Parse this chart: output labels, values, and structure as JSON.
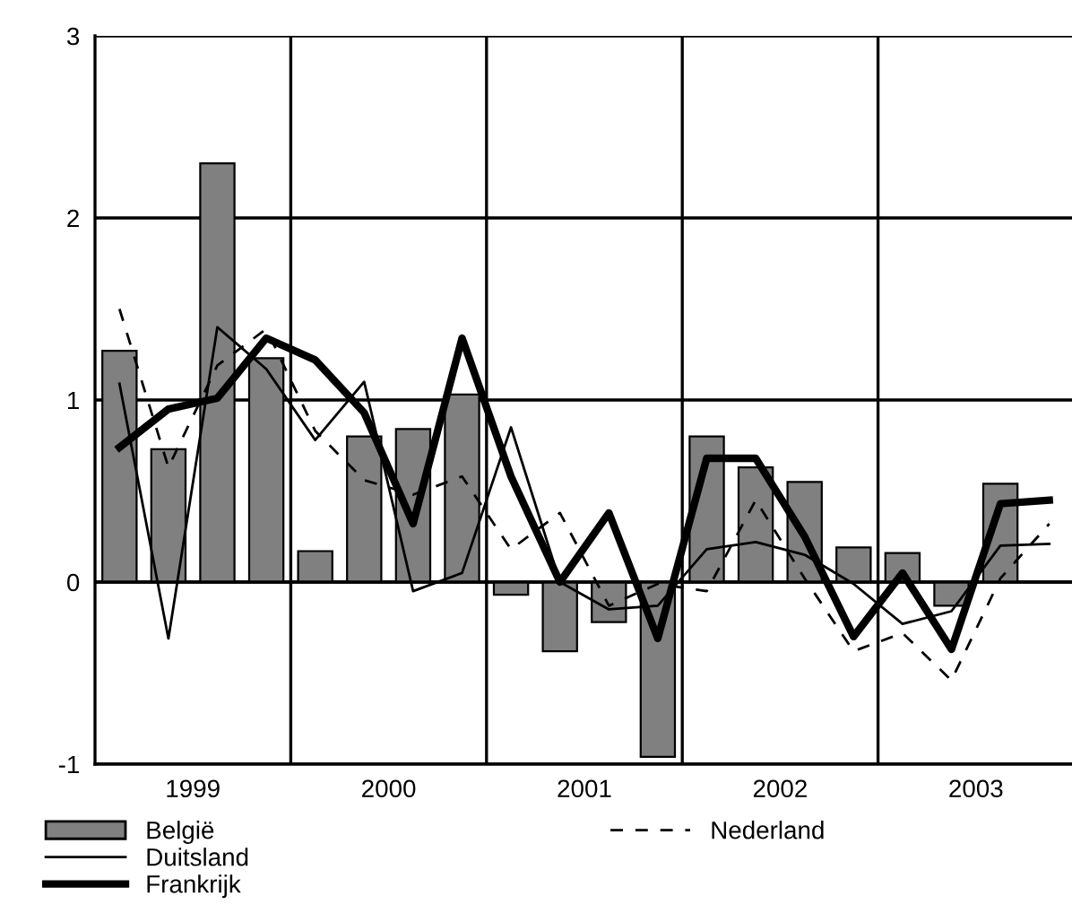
{
  "chart_data": {
    "type": "bar",
    "x": [
      1999.125,
      1999.375,
      1999.625,
      1999.875,
      2000.125,
      2000.375,
      2000.625,
      2000.875,
      2001.125,
      2001.375,
      2001.625,
      2001.875,
      2002.125,
      2002.375,
      2002.625,
      2002.875,
      2003.125,
      2003.375,
      2003.625,
      2003.875
    ],
    "series": [
      {
        "name": "België",
        "color": "#808080",
        "values": [
          1.27,
          0.73,
          2.3,
          1.23,
          0.17,
          0.8,
          0.84,
          1.03,
          -0.07,
          -0.38,
          -0.22,
          -0.96,
          0.8,
          0.63,
          0.55,
          0.19,
          0.16,
          -0.13,
          0.54,
          null
        ]
      },
      {
        "name": "Duitsland",
        "type": "line",
        "color": "#000000",
        "line_style": "solid",
        "values": [
          1.09,
          -0.31,
          1.4,
          1.17,
          0.78,
          1.1,
          -0.05,
          0.05,
          0.85,
          0.0,
          -0.15,
          -0.13,
          0.18,
          0.22,
          0.15,
          -0.01,
          -0.23,
          -0.16,
          0.2,
          0.21
        ]
      },
      {
        "name": "Frankrijk",
        "type": "line",
        "color": "#000000",
        "line_style": "solid",
        "values": [
          0.74,
          0.95,
          1.01,
          1.34,
          1.22,
          0.93,
          0.32,
          1.34,
          0.58,
          0.0,
          0.38,
          -0.31,
          0.68,
          0.68,
          0.25,
          -0.3,
          0.05,
          -0.37,
          0.43,
          0.45
        ]
      },
      {
        "name": "Nederland",
        "type": "line",
        "color": "#000000",
        "line_style": "dashed",
        "values": [
          1.5,
          0.63,
          1.19,
          1.39,
          0.83,
          0.56,
          0.48,
          0.58,
          0.18,
          0.38,
          -0.13,
          -0.01,
          -0.05,
          0.45,
          0.02,
          -0.38,
          -0.28,
          -0.54,
          0.02,
          0.32
        ]
      }
    ],
    "xlim": [
      1999,
      2004
    ],
    "xticks": [
      {
        "value": 1999.5,
        "label": "1999"
      },
      {
        "value": 2000.5,
        "label": "2000"
      },
      {
        "value": 2001.5,
        "label": "2001"
      },
      {
        "value": 2002.5,
        "label": "2002"
      },
      {
        "value": 2003.5,
        "label": "2003"
      }
    ],
    "ylim": [
      -1,
      3
    ],
    "yticks": [
      -1,
      0,
      1,
      2,
      3
    ],
    "ref_lines": [
      {
        "axis": "x",
        "value": 2000
      },
      {
        "axis": "x",
        "value": 2001
      },
      {
        "axis": "x",
        "value": 2002
      },
      {
        "axis": "x",
        "value": 2003
      }
    ],
    "grid": "y",
    "legend": "bottom"
  }
}
